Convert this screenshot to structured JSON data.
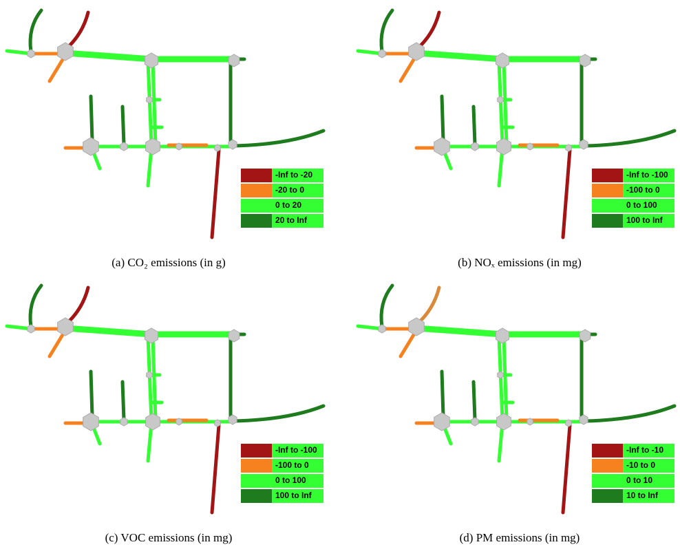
{
  "panels": [
    {
      "caption": "(a) CO₂ emissions (in g)",
      "legend": [
        {
          "label": "-Inf to -20",
          "color": "#a31515"
        },
        {
          "label": "-20 to 0",
          "color": "#f5821f"
        },
        {
          "label": "0 to 20",
          "color": "#33ff33"
        },
        {
          "label": "20 to Inf",
          "color": "#1e7b1e"
        }
      ]
    },
    {
      "caption": "(b) NOₓ emissions (in mg)",
      "legend": [
        {
          "label": "-Inf to -100",
          "color": "#a31515"
        },
        {
          "label": "-100 to 0",
          "color": "#f5821f"
        },
        {
          "label": "0 to 100",
          "color": "#33ff33"
        },
        {
          "label": "100 to Inf",
          "color": "#1e7b1e"
        }
      ]
    },
    {
      "caption": "(c) VOC emissions (in mg)",
      "legend": [
        {
          "label": "-Inf to -100",
          "color": "#a31515"
        },
        {
          "label": "-100 to 0",
          "color": "#f5821f"
        },
        {
          "label": "0 to 100",
          "color": "#33ff33"
        },
        {
          "label": "100 to Inf",
          "color": "#1e7b1e"
        }
      ]
    },
    {
      "caption": "(d) PM emissions (in mg)",
      "legend": [
        {
          "label": "-Inf to -10",
          "color": "#a31515"
        },
        {
          "label": "-10 to 0",
          "color": "#f5821f"
        },
        {
          "label": "0 to 10",
          "color": "#33ff33"
        },
        {
          "label": "10 to Inf",
          "color": "#1e7b1e"
        }
      ]
    }
  ]
}
